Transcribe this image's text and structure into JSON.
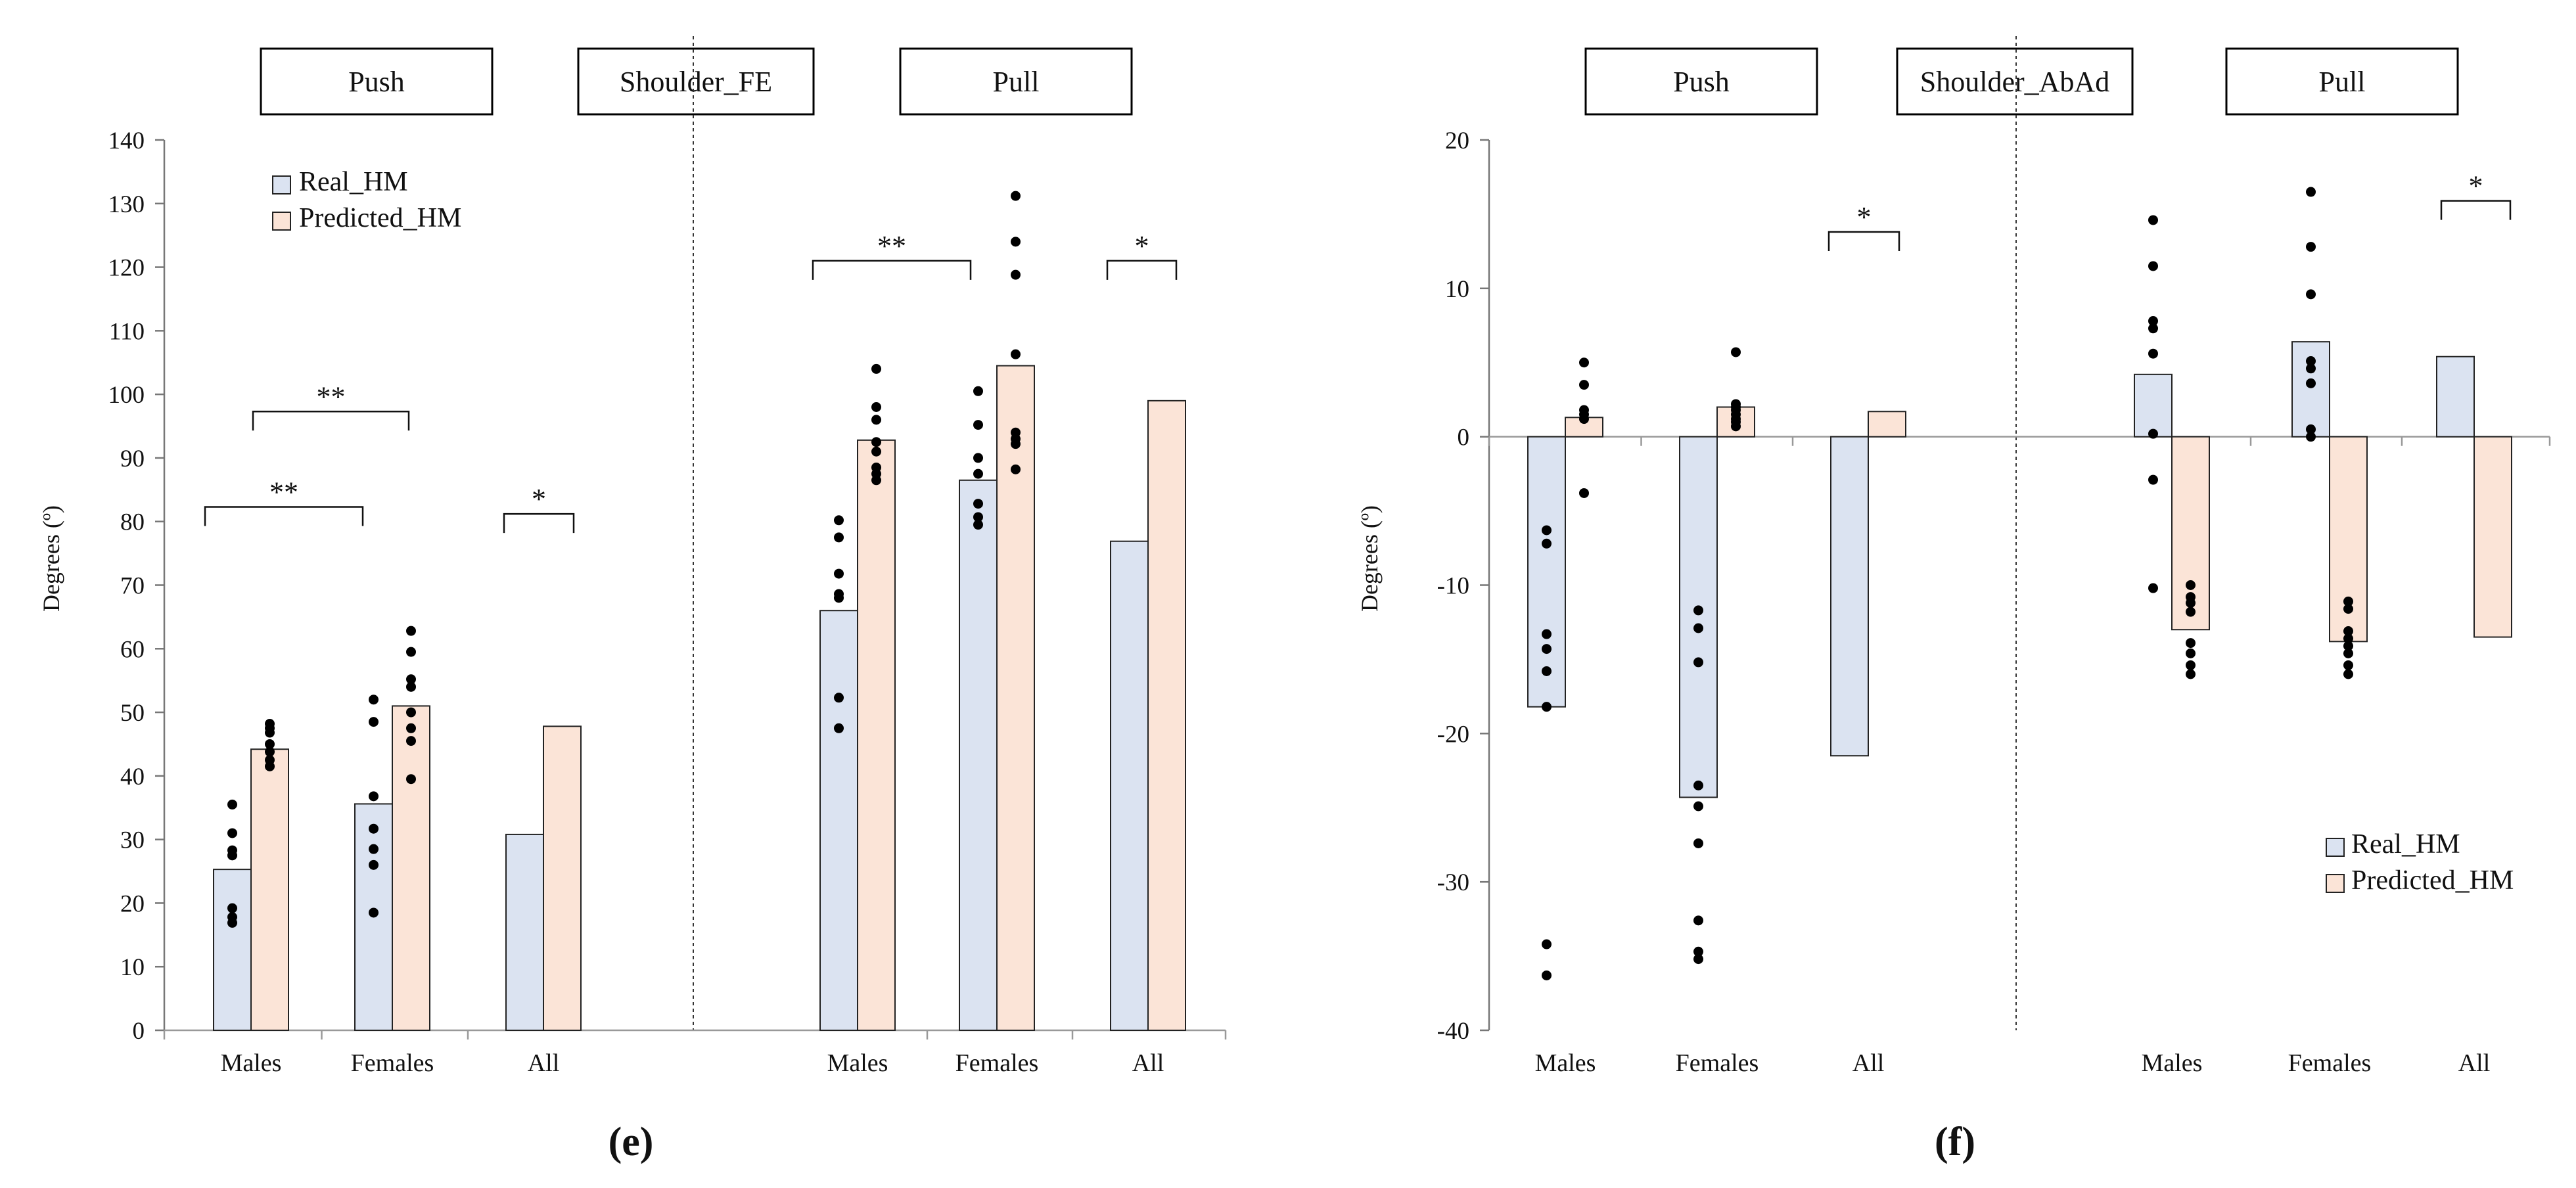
{
  "chart_data": [
    {
      "type": "bar",
      "panel_label_pre": "(",
      "panel_label": "e",
      "panel_label_post": ")",
      "group_labels": [
        "Push",
        "Shoulder_FE",
        "Pull"
      ],
      "ylabel": "Degrees (º)",
      "ylim": [
        0,
        140
      ],
      "yticks": [
        0,
        10,
        20,
        30,
        40,
        50,
        60,
        70,
        80,
        90,
        100,
        110,
        120,
        130,
        140
      ],
      "legend": [
        "Real_HM",
        "Predicted_HM"
      ],
      "legend_position": "top-left",
      "grid": false,
      "sections": [
        "Push",
        "Pull"
      ],
      "categories": [
        "Males",
        "Females",
        "All",
        "Males",
        "Females",
        "All"
      ],
      "series": [
        {
          "name": "Real_HM",
          "color": "#dbe3f1",
          "values": [
            25.3,
            35.6,
            30.8,
            66.0,
            86.5,
            76.9
          ],
          "points": [
            [
              35.5,
              31.0,
              28.3,
              27.5,
              19.2,
              17.8,
              16.9
            ],
            [
              52.0,
              48.5,
              36.8,
              31.7,
              28.5,
              26.0,
              18.5
            ],
            [],
            [
              80.2,
              77.5,
              71.8,
              68.6,
              68.0,
              52.3,
              47.5
            ],
            [
              100.5,
              95.2,
              90.0,
              87.5,
              82.8,
              80.7,
              79.5
            ],
            []
          ]
        },
        {
          "name": "Predicted_HM",
          "color": "#fbe4d7",
          "values": [
            44.2,
            51.0,
            47.8,
            92.8,
            104.5,
            99.0
          ],
          "points": [
            [
              48.2,
              47.5,
              46.8,
              45.0,
              43.8,
              42.5,
              41.5
            ],
            [
              62.8,
              59.5,
              55.2,
              54.0,
              50.0,
              47.5,
              45.5,
              39.5
            ],
            [],
            [
              104.0,
              98.0,
              96.0,
              92.5,
              91.0,
              88.5,
              87.5,
              86.5
            ],
            [
              131.2,
              124.0,
              118.8,
              106.3,
              94.0,
              93.0,
              92.2,
              88.2
            ],
            []
          ]
        }
      ],
      "annotations": [
        {
          "text": "**",
          "from": "Push Males",
          "to": "Push Females",
          "at": 82.3
        },
        {
          "text": "**",
          "from": "Push Males",
          "to": "Push Females",
          "at": 97.3
        },
        {
          "text": "*",
          "from": "Push All",
          "to": "Push All",
          "at": 81.2
        },
        {
          "text": "**",
          "from": "Pull Males",
          "to": "Pull Females",
          "at": 121.0
        },
        {
          "text": "*",
          "from": "Pull All",
          "to": "Pull All",
          "at": 121.0
        }
      ]
    },
    {
      "type": "bar",
      "panel_label_pre": "(",
      "panel_label": "f",
      "panel_label_post": ")",
      "group_labels": [
        "Push",
        "Shoulder_AbAd",
        "Pull"
      ],
      "ylabel": "Degrees (º)",
      "ylim": [
        -40,
        20
      ],
      "yticks": [
        -40,
        -30,
        -20,
        -10,
        0,
        10,
        20
      ],
      "legend": [
        "Real_HM",
        "Predicted_HM"
      ],
      "legend_position": "bottom-right",
      "grid": false,
      "sections": [
        "Push",
        "Pull"
      ],
      "categories": [
        "Males",
        "Females",
        "All",
        "Males",
        "Females",
        "All"
      ],
      "series": [
        {
          "name": "Real_HM",
          "color": "#dbe3f1",
          "values": [
            -18.2,
            -24.3,
            -21.5,
            4.2,
            6.4,
            5.4
          ],
          "points": [
            [
              -6.3,
              -7.2,
              -13.3,
              -14.3,
              -15.8,
              -18.2,
              -34.2,
              -36.3
            ],
            [
              -11.7,
              -12.9,
              -15.2,
              -23.5,
              -24.9,
              -27.4,
              -32.6,
              -34.7,
              -35.2
            ],
            [],
            [
              14.6,
              11.5,
              7.8,
              7.3,
              5.6,
              0.2,
              -2.9,
              -10.2
            ],
            [
              16.5,
              12.8,
              9.6,
              5.1,
              4.6,
              3.6,
              0.5,
              0.0
            ],
            []
          ]
        },
        {
          "name": "Predicted_HM",
          "color": "#fbe4d7",
          "values": [
            1.3,
            2.0,
            1.7,
            -13.0,
            -13.8,
            -13.5
          ],
          "points": [
            [
              5.0,
              3.5,
              1.8,
              1.5,
              1.2,
              -3.8
            ],
            [
              5.7,
              2.2,
              2.0,
              1.8,
              1.5,
              1.2,
              1.0,
              0.7
            ],
            [],
            [
              -10.0,
              -10.8,
              -11.2,
              -11.8,
              -13.9,
              -14.6,
              -15.4,
              -16.0
            ],
            [
              -11.1,
              -11.6,
              -13.1,
              -13.6,
              -14.1,
              -14.6,
              -15.4,
              -16.0
            ],
            []
          ]
        }
      ],
      "annotations": [
        {
          "text": "*",
          "from": "Push All",
          "to": "Push All",
          "at": 13.8
        },
        {
          "text": "*",
          "from": "Pull All",
          "to": "Pull All",
          "at": 15.9
        }
      ]
    }
  ]
}
